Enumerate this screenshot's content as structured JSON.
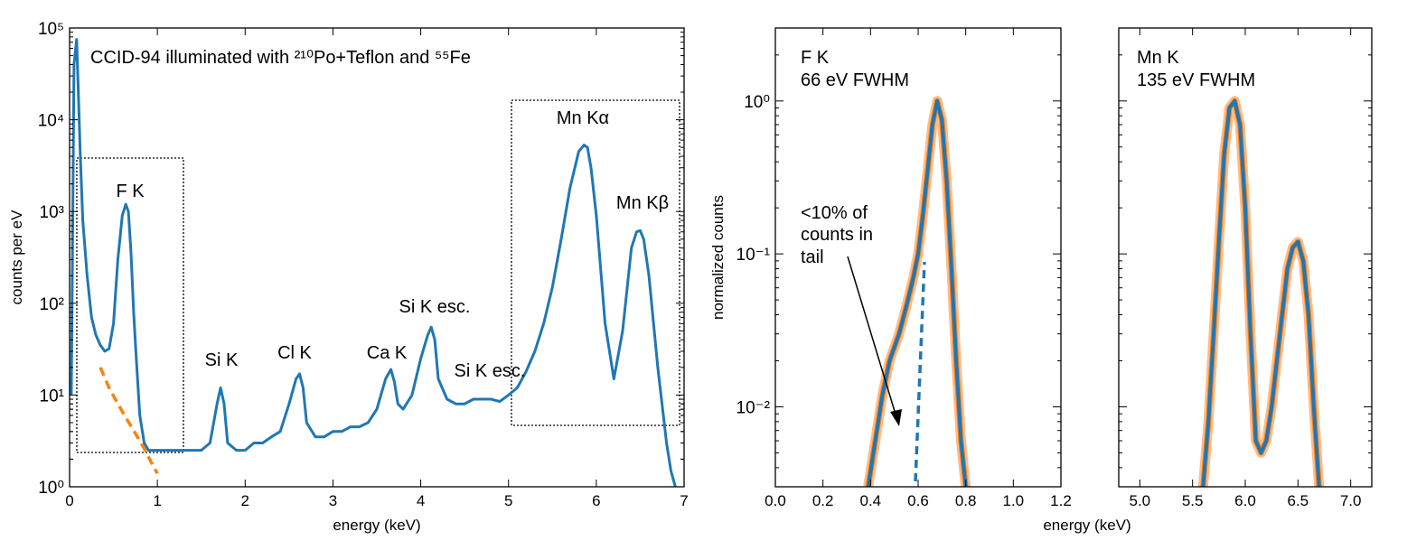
{
  "colors": {
    "series": "#1f77b4",
    "fit": "#ff7f0e",
    "fit_light": "#ffbb88",
    "frame": "#000000"
  },
  "chart_data": [
    {
      "type": "line",
      "yscale": "log",
      "title": "CCID-94 illuminated with ²¹⁰Po+Teflon and ⁵⁵Fe",
      "xlabel": "energy (keV)",
      "ylabel": "counts per eV",
      "xlim": [
        0,
        7
      ],
      "ylim": [
        1,
        100000
      ],
      "xticks": [
        "0",
        "1",
        "2",
        "3",
        "4",
        "5",
        "6",
        "7"
      ],
      "yticks": [
        "10⁰",
        "10¹",
        "10²",
        "10³",
        "10⁴",
        "10⁵"
      ],
      "series": [
        {
          "x": [
            0.02,
            0.05,
            0.08,
            0.1,
            0.12,
            0.15,
            0.2,
            0.25,
            0.3,
            0.35,
            0.4,
            0.45,
            0.5,
            0.55,
            0.6,
            0.64,
            0.67,
            0.7,
            0.73,
            0.76,
            0.8,
            0.85,
            0.9,
            0.95,
            1.0,
            1.1,
            1.2,
            1.3,
            1.4,
            1.5,
            1.6,
            1.68,
            1.72,
            1.76,
            1.8,
            1.9,
            2.0,
            2.1,
            2.2,
            2.3,
            2.4,
            2.5,
            2.58,
            2.62,
            2.66,
            2.7,
            2.8,
            2.9,
            3.0,
            3.1,
            3.2,
            3.3,
            3.4,
            3.5,
            3.6,
            3.66,
            3.7,
            3.74,
            3.8,
            3.9,
            4.0,
            4.08,
            4.12,
            4.16,
            4.2,
            4.3,
            4.4,
            4.5,
            4.6,
            4.7,
            4.8,
            4.9,
            5.0,
            5.1,
            5.2,
            5.3,
            5.4,
            5.5,
            5.6,
            5.7,
            5.8,
            5.86,
            5.9,
            5.94,
            6.0,
            6.1,
            6.2,
            6.3,
            6.4,
            6.46,
            6.5,
            6.54,
            6.6,
            6.7,
            6.8,
            6.85,
            6.9
          ],
          "y": [
            10,
            40000,
            75000,
            20000,
            4500,
            800,
            200,
            70,
            45,
            35,
            30,
            32,
            60,
            300,
            900,
            1200,
            1000,
            350,
            80,
            25,
            6,
            3,
            2.5,
            2.5,
            2.5,
            2.5,
            2.5,
            2.5,
            2.5,
            2.5,
            3,
            8,
            12,
            8,
            3,
            2.5,
            2.5,
            3,
            3,
            3.5,
            4,
            8,
            15,
            17,
            12,
            5,
            3.5,
            3.5,
            4,
            4,
            4.5,
            4.5,
            5,
            7,
            15,
            19,
            14,
            8,
            7,
            10,
            25,
            45,
            55,
            40,
            15,
            9,
            8,
            8,
            9,
            9,
            9,
            8.5,
            10,
            12,
            18,
            30,
            60,
            150,
            500,
            1800,
            4500,
            5300,
            5000,
            3000,
            900,
            60,
            15,
            50,
            400,
            600,
            620,
            500,
            200,
            20,
            3,
            1.5,
            1
          ],
          "dash": false
        },
        {
          "name": "",
          "x": [
            0.35,
            0.45,
            0.55,
            0.65,
            0.75,
            0.85,
            0.95,
            1.0
          ],
          "y": [
            20,
            12,
            8,
            5.5,
            3.8,
            2.6,
            1.7,
            1.4
          ],
          "dash": true
        }
      ],
      "annotations": [
        "F K",
        "Si K",
        "Cl K",
        "Ca K",
        "Si K esc.",
        "Si K esc.",
        "Mn Kα",
        "Mn Kβ"
      ]
    },
    {
      "type": "line",
      "yscale": "log",
      "title": "F K",
      "subtitle": "66 eV FWHM",
      "xlabel": "",
      "ylabel": "normalized counts",
      "xlim": [
        0,
        1.2
      ],
      "ylim": [
        0.003,
        3
      ],
      "xticks": [
        "0.0",
        "0.2",
        "0.4",
        "0.6",
        "0.8",
        "1.0",
        "1.2"
      ],
      "yticks": [
        "10⁻²",
        "10⁻¹",
        "10⁰"
      ],
      "series": [
        {
          "x": [
            0.39,
            0.42,
            0.45,
            0.48,
            0.52,
            0.55,
            0.58,
            0.6,
            0.62,
            0.64,
            0.66,
            0.68,
            0.7,
            0.72,
            0.74,
            0.76,
            0.78,
            0.8
          ],
          "y": [
            0.003,
            0.006,
            0.012,
            0.02,
            0.03,
            0.045,
            0.07,
            0.1,
            0.18,
            0.35,
            0.7,
            1.0,
            0.75,
            0.3,
            0.08,
            0.02,
            0.006,
            0.003
          ]
        }
      ],
      "annotations": [
        "<10% of counts in tail"
      ]
    },
    {
      "type": "line",
      "yscale": "log",
      "title": "Mn K",
      "subtitle": "135 eV FWHM",
      "xlabel": "",
      "ylabel": "",
      "xlim": [
        4.8,
        7.2
      ],
      "ylim": [
        0.003,
        3
      ],
      "xticks": [
        "5.0",
        "5.5",
        "6.0",
        "6.5",
        "7.0"
      ],
      "yticks": [],
      "series": [
        {
          "x": [
            5.6,
            5.65,
            5.7,
            5.75,
            5.8,
            5.85,
            5.9,
            5.95,
            6.0,
            6.05,
            6.1,
            6.15,
            6.2,
            6.25,
            6.3,
            6.35,
            6.4,
            6.45,
            6.5,
            6.55,
            6.6,
            6.65,
            6.7
          ],
          "y": [
            0.003,
            0.008,
            0.03,
            0.12,
            0.45,
            0.9,
            1.0,
            0.7,
            0.2,
            0.03,
            0.006,
            0.005,
            0.006,
            0.01,
            0.02,
            0.04,
            0.08,
            0.11,
            0.12,
            0.09,
            0.04,
            0.01,
            0.003
          ]
        }
      ]
    }
  ],
  "shared_xlabel": "energy (keV)"
}
